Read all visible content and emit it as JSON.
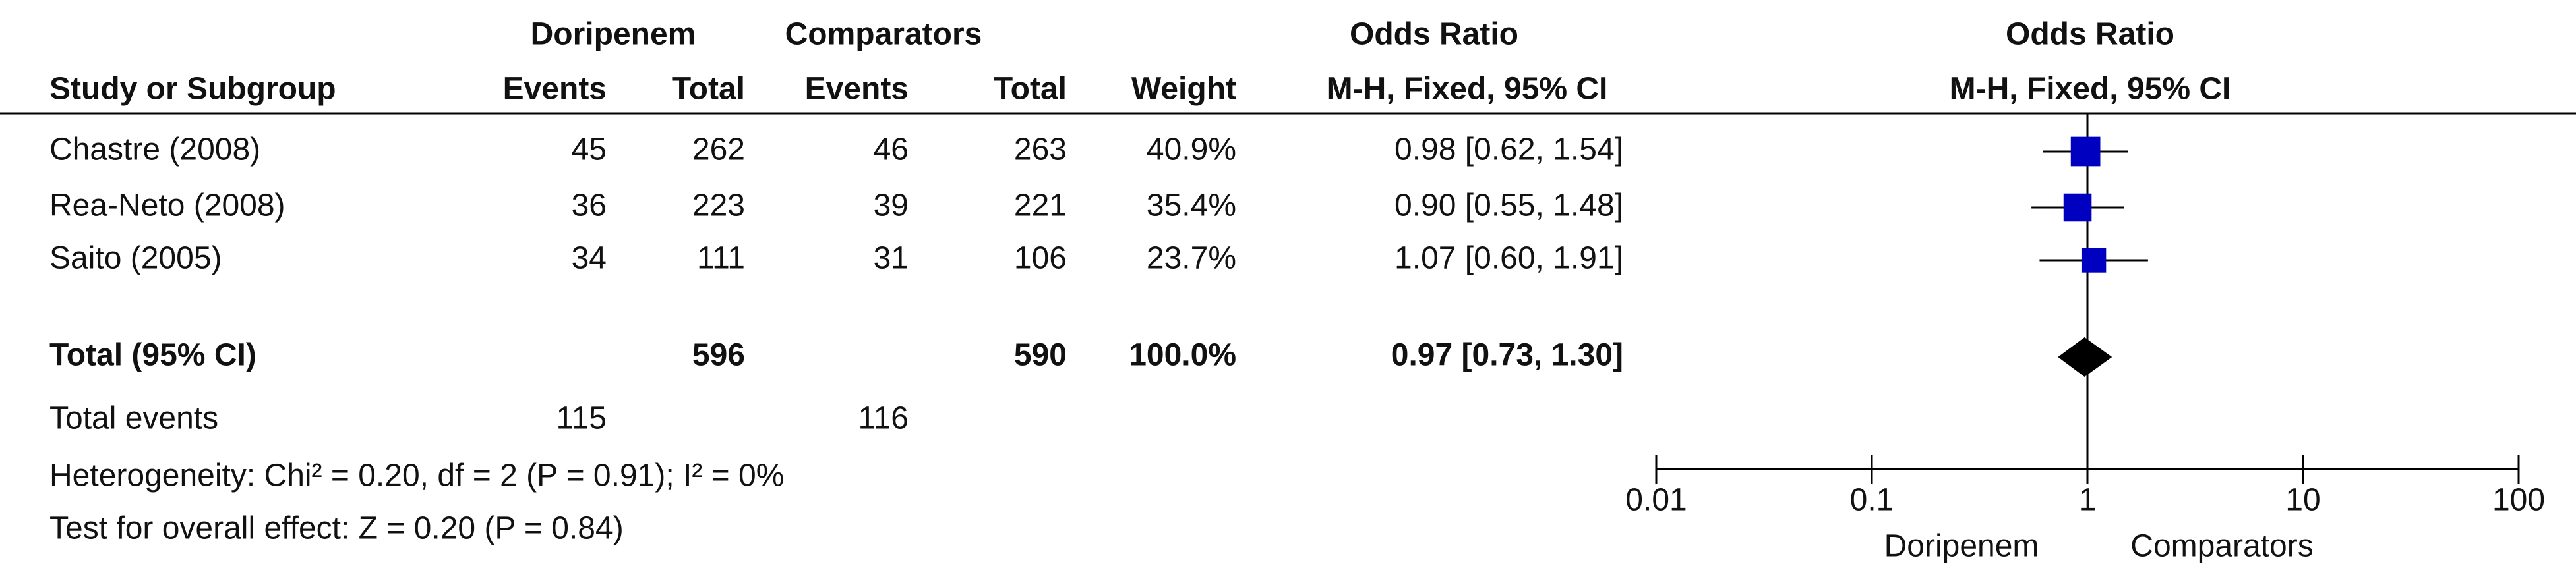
{
  "header": {
    "group1": "Doripenem",
    "group2": "Comparators",
    "or_title": "Odds Ratio",
    "or_subtitle": "M-H, Fixed, 95% CI",
    "columns": [
      "Study or Subgroup",
      "Events",
      "Total",
      "Events",
      "Total",
      "Weight",
      "M-H, Fixed, 95% CI"
    ],
    "plot_title": "Odds Ratio"
  },
  "table": {
    "rows": [
      [
        "Chastre (2008)",
        45,
        262,
        46,
        263,
        "40.9%",
        "0.98 [0.62, 1.54]"
      ],
      [
        "Rea-Neto (2008)",
        36,
        223,
        39,
        221,
        "35.4%",
        "0.90 [0.55, 1.48]"
      ],
      [
        "Saito (2005)",
        34,
        111,
        31,
        106,
        "23.7%",
        "1.07 [0.60, 1.91]"
      ]
    ],
    "total": {
      "label": "Total (95% CI)",
      "total1": 596,
      "total2": 590,
      "weight": "100.0%",
      "ci": "0.97 [0.73, 1.30]"
    },
    "events": {
      "label": "Total events",
      "events1": 115,
      "events2": 116
    },
    "heterogeneity": "Heterogeneity: Chi² = 0.20, df = 2 (P = 0.91); I² = 0%",
    "overall": "Test for overall effect: Z = 0.20 (P = 0.84)"
  },
  "chart_data": {
    "type": "forest",
    "xscale": "log",
    "xlim": [
      0.01,
      100
    ],
    "xticks": [
      0.01,
      0.1,
      1,
      10,
      100
    ],
    "left_label": "Doripenem",
    "right_label": "Comparators",
    "color": "#0000c0",
    "total_color": "#000000",
    "studies": [
      {
        "or": 0.98,
        "lo": 0.62,
        "hi": 1.54,
        "weight": 40.9
      },
      {
        "or": 0.9,
        "lo": 0.55,
        "hi": 1.48,
        "weight": 35.4
      },
      {
        "or": 1.07,
        "lo": 0.6,
        "hi": 1.91,
        "weight": 23.7
      }
    ],
    "total": {
      "or": 0.97,
      "lo": 0.73,
      "hi": 1.3
    }
  }
}
